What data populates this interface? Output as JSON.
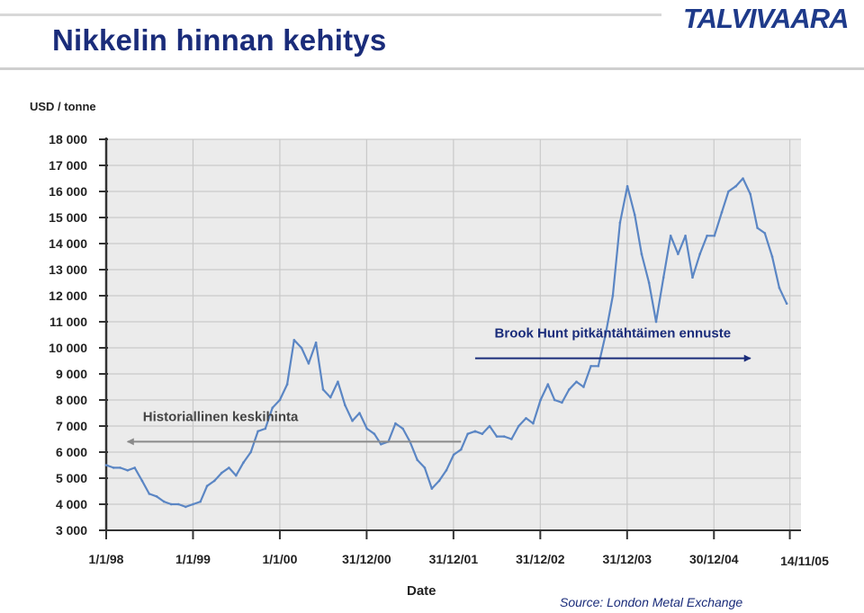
{
  "header": {
    "title": "Nikkelin hinnan kehitys",
    "logo": "TALVIVAARA"
  },
  "colors": {
    "title": "#1a2c7a",
    "series": "#5b86c4",
    "forecast_arrow": "#1a2c7a",
    "historical_arrow": "#8a8a8a",
    "grid": "#c9c9c9",
    "plot_bg": "#ebebeb"
  },
  "chart_data": {
    "type": "line",
    "title": "",
    "ylabel": "USD / tonne",
    "xlabel": "Date",
    "ylim": [
      3000,
      18000
    ],
    "xlim": [
      "1998-01-01",
      "2005-12-31"
    ],
    "grid": true,
    "legend": "none",
    "y_ticks": [
      {
        "value": 18000,
        "label": "18 000"
      },
      {
        "value": 17000,
        "label": "17 000"
      },
      {
        "value": 16000,
        "label": "16 000"
      },
      {
        "value": 15000,
        "label": "15 000"
      },
      {
        "value": 14000,
        "label": "14 000"
      },
      {
        "value": 13000,
        "label": "13 000"
      },
      {
        "value": 12000,
        "label": "12 000"
      },
      {
        "value": 11000,
        "label": "11 000"
      },
      {
        "value": 10000,
        "label": "10 000"
      },
      {
        "value": 9000,
        "label": "9 000"
      },
      {
        "value": 8000,
        "label": "8 000"
      },
      {
        "value": 7000,
        "label": "7 000"
      },
      {
        "value": 6000,
        "label": "6 000"
      },
      {
        "value": 5000,
        "label": "5 000"
      },
      {
        "value": 4000,
        "label": "4 000"
      },
      {
        "value": 3000,
        "label": "3 000"
      }
    ],
    "x_ticks": [
      {
        "date": "1998-01-01",
        "label": "1/1/98"
      },
      {
        "date": "1999-01-01",
        "label": "1/1/99"
      },
      {
        "date": "2000-01-01",
        "label": "1/1/00"
      },
      {
        "date": "2000-12-31",
        "label": "31/12/00"
      },
      {
        "date": "2001-12-31",
        "label": "31/12/01"
      },
      {
        "date": "2002-12-31",
        "label": "31/12/02"
      },
      {
        "date": "2003-12-31",
        "label": "31/12/03"
      },
      {
        "date": "2004-12-30",
        "label": "30/12/04"
      },
      {
        "date": "2005-11-14",
        "label": "14/11/05"
      }
    ],
    "series": [
      {
        "points": [
          [
            "1998-01-01",
            5500
          ],
          [
            "1998-02-01",
            5400
          ],
          [
            "1998-03-01",
            5400
          ],
          [
            "1998-04-01",
            5300
          ],
          [
            "1998-05-01",
            5400
          ],
          [
            "1998-06-01",
            4900
          ],
          [
            "1998-07-01",
            4400
          ],
          [
            "1998-08-01",
            4300
          ],
          [
            "1998-09-01",
            4100
          ],
          [
            "1998-10-01",
            4000
          ],
          [
            "1998-11-01",
            4000
          ],
          [
            "1998-12-01",
            3900
          ],
          [
            "1999-01-01",
            4000
          ],
          [
            "1999-02-01",
            4100
          ],
          [
            "1999-03-01",
            4700
          ],
          [
            "1999-04-01",
            4900
          ],
          [
            "1999-05-01",
            5200
          ],
          [
            "1999-06-01",
            5400
          ],
          [
            "1999-07-01",
            5100
          ],
          [
            "1999-08-01",
            5600
          ],
          [
            "1999-09-01",
            6000
          ],
          [
            "1999-10-01",
            6800
          ],
          [
            "1999-11-01",
            6900
          ],
          [
            "1999-12-01",
            7700
          ],
          [
            "2000-01-01",
            8000
          ],
          [
            "2000-02-01",
            8600
          ],
          [
            "2000-03-01",
            10300
          ],
          [
            "2000-04-01",
            10000
          ],
          [
            "2000-05-01",
            9400
          ],
          [
            "2000-06-01",
            10200
          ],
          [
            "2000-07-01",
            8400
          ],
          [
            "2000-08-01",
            8100
          ],
          [
            "2000-09-01",
            8700
          ],
          [
            "2000-10-01",
            7800
          ],
          [
            "2000-11-01",
            7200
          ],
          [
            "2000-12-01",
            7500
          ],
          [
            "2001-01-01",
            6900
          ],
          [
            "2001-02-01",
            6700
          ],
          [
            "2001-03-01",
            6300
          ],
          [
            "2001-04-01",
            6400
          ],
          [
            "2001-05-01",
            7100
          ],
          [
            "2001-06-01",
            6900
          ],
          [
            "2001-07-01",
            6400
          ],
          [
            "2001-08-01",
            5700
          ],
          [
            "2001-09-01",
            5400
          ],
          [
            "2001-10-01",
            4600
          ],
          [
            "2001-11-01",
            4900
          ],
          [
            "2001-12-01",
            5300
          ],
          [
            "2002-01-01",
            5900
          ],
          [
            "2002-02-01",
            6100
          ],
          [
            "2002-03-01",
            6700
          ],
          [
            "2002-04-01",
            6800
          ],
          [
            "2002-05-01",
            6700
          ],
          [
            "2002-06-01",
            7000
          ],
          [
            "2002-07-01",
            6600
          ],
          [
            "2002-08-01",
            6600
          ],
          [
            "2002-09-01",
            6500
          ],
          [
            "2002-10-01",
            7000
          ],
          [
            "2002-11-01",
            7300
          ],
          [
            "2002-12-01",
            7100
          ],
          [
            "2003-01-01",
            8000
          ],
          [
            "2003-02-01",
            8600
          ],
          [
            "2003-03-01",
            8000
          ],
          [
            "2003-04-01",
            7900
          ],
          [
            "2003-05-01",
            8400
          ],
          [
            "2003-06-01",
            8700
          ],
          [
            "2003-07-01",
            8500
          ],
          [
            "2003-08-01",
            9300
          ],
          [
            "2003-09-01",
            9300
          ],
          [
            "2003-10-01",
            10500
          ],
          [
            "2003-11-01",
            12000
          ],
          [
            "2003-12-01",
            14800
          ],
          [
            "2004-01-01",
            16200
          ],
          [
            "2004-02-01",
            15100
          ],
          [
            "2004-03-01",
            13600
          ],
          [
            "2004-04-01",
            12500
          ],
          [
            "2004-05-01",
            11000
          ],
          [
            "2004-06-01",
            12700
          ],
          [
            "2004-07-01",
            14300
          ],
          [
            "2004-08-01",
            13600
          ],
          [
            "2004-09-01",
            14300
          ],
          [
            "2004-10-01",
            12700
          ],
          [
            "2004-11-01",
            13600
          ],
          [
            "2004-12-01",
            14300
          ],
          [
            "2005-01-01",
            14300
          ],
          [
            "2005-02-01",
            15200
          ],
          [
            "2005-03-01",
            16000
          ],
          [
            "2005-04-01",
            16200
          ],
          [
            "2005-05-01",
            16500
          ],
          [
            "2005-06-01",
            15900
          ],
          [
            "2005-07-01",
            14600
          ],
          [
            "2005-08-01",
            14400
          ],
          [
            "2005-09-01",
            13500
          ],
          [
            "2005-10-01",
            12300
          ],
          [
            "2005-11-01",
            11700
          ]
        ]
      }
    ],
    "annotations": [
      {
        "text": "Brook Hunt pitkäntähtäimen ennuste",
        "value": 9600,
        "from": "2002-04-01",
        "to": "2005-06-01",
        "direction": "right"
      },
      {
        "text": "Historiallinen keskihinta",
        "value": 6400,
        "from": "2002-02-01",
        "to": "1998-04-01",
        "direction": "left"
      }
    ],
    "source": "Source: London Metal Exchange"
  }
}
